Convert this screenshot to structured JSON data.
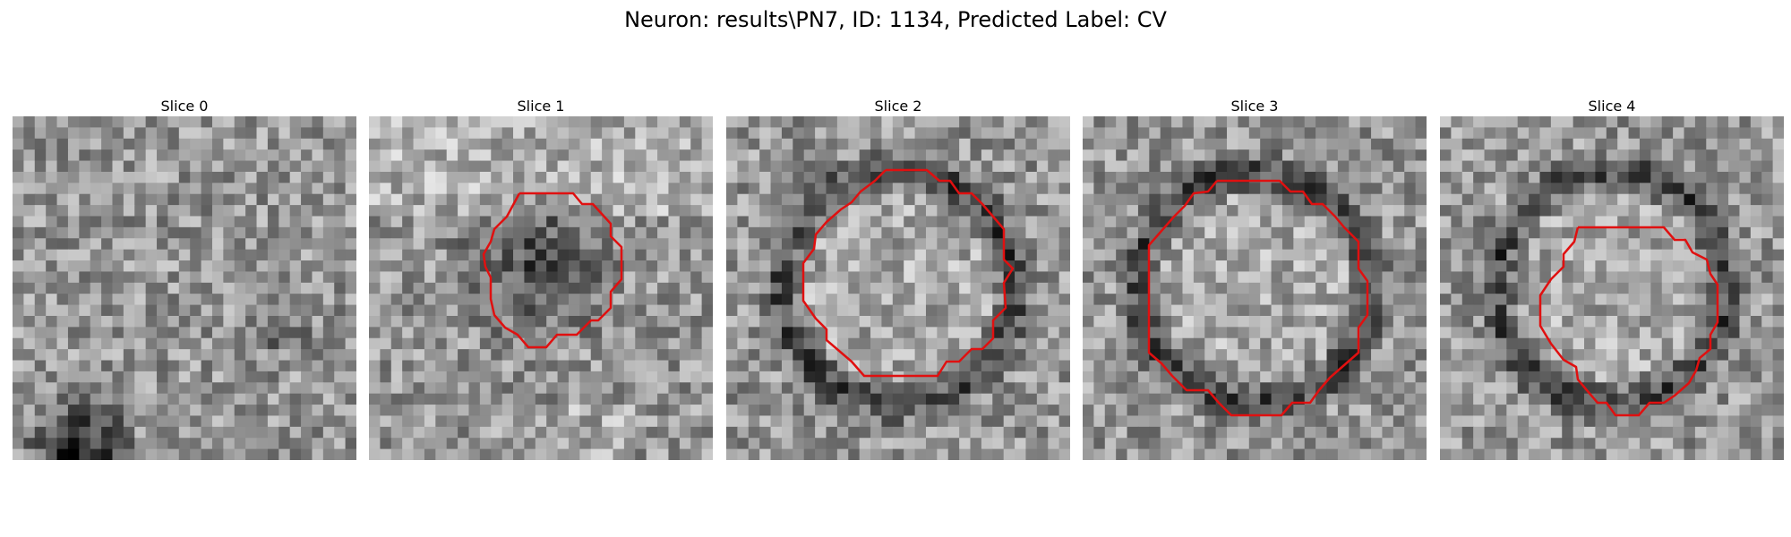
{
  "figure": {
    "title": "Neuron: results\\PN7, ID: 1134, Predicted Label: CV"
  },
  "colors": {
    "contour": "#e01010",
    "colormap": "gray"
  },
  "slices": [
    {
      "label": "Slice 0",
      "pattern": "noise-dark-bottom-left",
      "has_contour": false
    },
    {
      "label": "Slice 1",
      "pattern": "dark-blob-center",
      "has_contour": true
    },
    {
      "label": "Slice 2",
      "pattern": "dark-ring",
      "has_contour": true
    },
    {
      "label": "Slice 3",
      "pattern": "dark-ring",
      "has_contour": true
    },
    {
      "label": "Slice 4",
      "pattern": "dark-ring",
      "has_contour": true
    }
  ]
}
